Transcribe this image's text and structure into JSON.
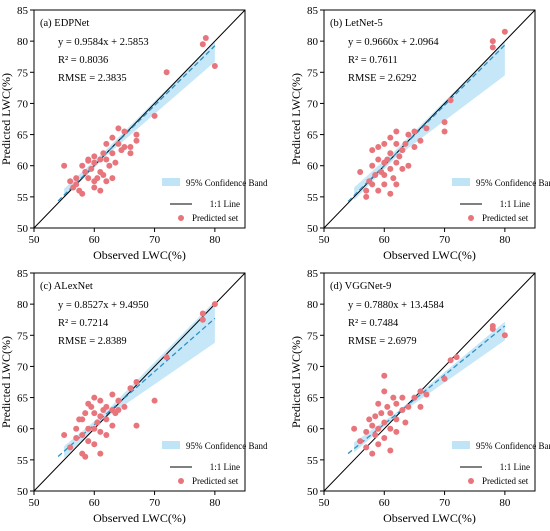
{
  "chart_data": [
    {
      "type": "scatter",
      "title": "(a) EDPNet",
      "xlabel": "Observed LWC(%)",
      "ylabel": "Predicted LWC(%)",
      "xlim": [
        50,
        85
      ],
      "ylim": [
        50,
        85
      ],
      "xticks": [
        50,
        60,
        70,
        80
      ],
      "yticks": [
        50,
        55,
        60,
        65,
        70,
        75,
        80,
        85
      ],
      "annotations": [
        "y = 0.9584x + 2.5853",
        "R² = 0.8036",
        "RMSE = 2.3835"
      ],
      "legend": [
        "95% Confidence Band",
        "1:1 Line",
        "Predicted set"
      ],
      "legend_position": "lower-right",
      "fit": {
        "slope": 0.9584,
        "intercept": 2.5853
      },
      "band": {
        "x": [
          55,
          62,
          80
        ],
        "upper": [
          56.3,
          62.6,
          80.0
        ],
        "lower": [
          54.8,
          61.6,
          76.7
        ]
      },
      "points": [
        [
          55,
          60.0
        ],
        [
          56,
          57.5
        ],
        [
          56.5,
          56.5
        ],
        [
          57,
          58.0
        ],
        [
          57,
          57.0
        ],
        [
          57.5,
          56.0
        ],
        [
          58,
          55.5
        ],
        [
          58,
          60.0
        ],
        [
          58.5,
          59.0
        ],
        [
          59,
          60.8
        ],
        [
          59,
          61.0
        ],
        [
          59,
          58.0
        ],
        [
          59.5,
          59.5
        ],
        [
          60,
          56.5
        ],
        [
          60,
          60.5
        ],
        [
          60,
          57.5
        ],
        [
          60,
          61.5
        ],
        [
          60.5,
          58.0
        ],
        [
          61,
          59.0
        ],
        [
          61,
          61.0
        ],
        [
          61,
          56.0
        ],
        [
          61.5,
          62.0
        ],
        [
          61.5,
          58.5
        ],
        [
          62,
          63.5
        ],
        [
          62,
          61.0
        ],
        [
          62,
          57.5
        ],
        [
          62.5,
          60.0
        ],
        [
          63,
          64.5
        ],
        [
          63,
          62.0
        ],
        [
          63,
          58.0
        ],
        [
          63.5,
          60.5
        ],
        [
          64,
          66.0
        ],
        [
          64,
          63.5
        ],
        [
          64.5,
          62.5
        ],
        [
          65,
          65.5
        ],
        [
          65,
          63.0
        ],
        [
          66,
          63.0
        ],
        [
          66,
          62.0
        ],
        [
          67,
          65.0
        ],
        [
          67,
          64.0
        ],
        [
          70,
          68.0
        ],
        [
          72,
          75.0
        ],
        [
          78,
          79.5
        ],
        [
          78.5,
          80.5
        ],
        [
          80,
          76.0
        ]
      ]
    },
    {
      "type": "scatter",
      "title": "(b) LetNet-5",
      "xlabel": "Observed LWC(%)",
      "ylabel": "Predicted LWC(%)",
      "xlim": [
        50,
        85
      ],
      "ylim": [
        50,
        85
      ],
      "xticks": [
        50,
        60,
        70,
        80
      ],
      "yticks": [
        50,
        55,
        60,
        65,
        70,
        75,
        80,
        85
      ],
      "annotations": [
        "y = 0.9660x + 2.0964",
        "R² = 0.7611",
        "RMSE = 2.6292"
      ],
      "legend": [
        "95% Confidence Band",
        "1:1 Line",
        "Predicted set"
      ],
      "legend_position": "lower-right",
      "fit": {
        "slope": 0.966,
        "intercept": 2.0964
      },
      "band": {
        "x": [
          55,
          62,
          80
        ],
        "upper": [
          56.5,
          62.6,
          80.0
        ],
        "lower": [
          54.5,
          61.4,
          74.5
        ]
      },
      "points": [
        [
          56,
          59.0
        ],
        [
          57,
          56.0
        ],
        [
          57,
          55.0
        ],
        [
          57.5,
          57.5
        ],
        [
          58,
          60.0
        ],
        [
          58,
          57.0
        ],
        [
          58,
          62.5
        ],
        [
          58.5,
          58.5
        ],
        [
          59,
          61.0
        ],
        [
          59,
          56.0
        ],
        [
          59,
          63.0
        ],
        [
          59.5,
          59.0
        ],
        [
          60,
          60.5
        ],
        [
          60,
          58.5
        ],
        [
          60,
          63.5
        ],
        [
          60,
          57.0
        ],
        [
          60.5,
          61.0
        ],
        [
          61,
          62.0
        ],
        [
          61,
          59.5
        ],
        [
          61,
          55.5
        ],
        [
          61,
          64.5
        ],
        [
          61.5,
          58.0
        ],
        [
          62,
          65.5
        ],
        [
          62,
          63.5
        ],
        [
          62,
          60.5
        ],
        [
          62,
          57.0
        ],
        [
          62.5,
          61.5
        ],
        [
          63,
          62.5
        ],
        [
          63,
          59.5
        ],
        [
          63.5,
          63.5
        ],
        [
          64,
          60.0
        ],
        [
          64,
          65.0
        ],
        [
          65,
          65.5
        ],
        [
          65,
          63.0
        ],
        [
          66,
          64.0
        ],
        [
          67,
          66.0
        ],
        [
          70,
          65.5
        ],
        [
          70,
          67.0
        ],
        [
          71,
          70.5
        ],
        [
          78,
          80.0
        ],
        [
          78,
          79.0
        ],
        [
          80,
          81.5
        ]
      ]
    },
    {
      "type": "scatter",
      "title": "(c) ALexNet",
      "xlabel": "Observed LWC(%)",
      "ylabel": "Predicted LWC(%)",
      "xlim": [
        50,
        85
      ],
      "ylim": [
        50,
        85
      ],
      "xticks": [
        50,
        60,
        70,
        80
      ],
      "yticks": [
        50,
        55,
        60,
        65,
        70,
        75,
        80,
        85
      ],
      "annotations": [
        "y = 0.8527x + 9.4950",
        "R² = 0.7214",
        "RMSE = 2.8389"
      ],
      "legend": [
        "95% Confidence Band",
        "1:1 Line",
        "Predicted set"
      ],
      "legend_position": "lower-right",
      "fit": {
        "slope": 0.8527,
        "intercept": 9.495
      },
      "band": {
        "x": [
          55,
          62,
          80
        ],
        "upper": [
          57.2,
          62.8,
          80.5
        ],
        "lower": [
          55.3,
          61.8,
          73.8
        ]
      },
      "points": [
        [
          55,
          59.0
        ],
        [
          56,
          57.0
        ],
        [
          57,
          60.0
        ],
        [
          57,
          58.5
        ],
        [
          57.5,
          61.5
        ],
        [
          58,
          56.0
        ],
        [
          58,
          61.5
        ],
        [
          58,
          59.0
        ],
        [
          58.5,
          55.5
        ],
        [
          58.5,
          62.5
        ],
        [
          59,
          60.0
        ],
        [
          59,
          64.0
        ],
        [
          59,
          58.0
        ],
        [
          59.5,
          63.5
        ],
        [
          60,
          62.5
        ],
        [
          60,
          60.0
        ],
        [
          60,
          57.5
        ],
        [
          60,
          65.0
        ],
        [
          60.5,
          61.0
        ],
        [
          61,
          64.5
        ],
        [
          61,
          62.0
        ],
        [
          61,
          59.5
        ],
        [
          61,
          56.0
        ],
        [
          61.5,
          63.0
        ],
        [
          62,
          63.5
        ],
        [
          62,
          61.5
        ],
        [
          62,
          59.0
        ],
        [
          63,
          65.5
        ],
        [
          63,
          63.0
        ],
        [
          63,
          60.5
        ],
        [
          63.5,
          62.5
        ],
        [
          64,
          64.5
        ],
        [
          64,
          63.0
        ],
        [
          65,
          63.5
        ],
        [
          66,
          66.5
        ],
        [
          67,
          67.5
        ],
        [
          67,
          60.5
        ],
        [
          70,
          64.5
        ],
        [
          72,
          71.5
        ],
        [
          78,
          78.5
        ],
        [
          78,
          77.5
        ],
        [
          80,
          80.0
        ]
      ]
    },
    {
      "type": "scatter",
      "title": "(d) VGGNet-9",
      "xlabel": "Observed LWC(%)",
      "ylabel": "Predicted LWC(%)",
      "xlim": [
        50,
        85
      ],
      "ylim": [
        50,
        85
      ],
      "xticks": [
        50,
        60,
        70,
        80
      ],
      "yticks": [
        50,
        55,
        60,
        65,
        70,
        75,
        80,
        85
      ],
      "annotations": [
        "y = 0.7880x + 13.4584",
        "R² = 0.7484",
        "RMSE = 2.6979"
      ],
      "legend": [
        "95% Confidence Band",
        "1:1 Line",
        "Predicted set"
      ],
      "legend_position": "lower-right",
      "fit": {
        "slope": 0.788,
        "intercept": 13.4584
      },
      "band": {
        "x": [
          55,
          62,
          80
        ],
        "upper": [
          57.8,
          62.6,
          77.2
        ],
        "lower": [
          56.2,
          62.0,
          74.2
        ]
      },
      "points": [
        [
          55,
          60.0
        ],
        [
          56,
          58.0
        ],
        [
          57,
          59.5
        ],
        [
          57,
          57.0
        ],
        [
          57.5,
          61.5
        ],
        [
          58,
          60.5
        ],
        [
          58,
          56.0
        ],
        [
          58.5,
          62.0
        ],
        [
          58.5,
          59.0
        ],
        [
          59,
          64.0
        ],
        [
          59,
          60.0
        ],
        [
          59,
          57.5
        ],
        [
          59.5,
          62.5
        ],
        [
          60,
          68.5
        ],
        [
          60,
          66.0
        ],
        [
          60,
          61.0
        ],
        [
          60,
          58.5
        ],
        [
          60.5,
          63.5
        ],
        [
          61,
          62.5
        ],
        [
          61,
          60.0
        ],
        [
          61,
          56.5
        ],
        [
          61.5,
          65.0
        ],
        [
          62,
          64.0
        ],
        [
          62,
          61.5
        ],
        [
          62,
          59.5
        ],
        [
          63,
          65.0
        ],
        [
          63,
          63.0
        ],
        [
          63.5,
          61.0
        ],
        [
          64,
          63.5
        ],
        [
          65,
          65.0
        ],
        [
          66,
          63.5
        ],
        [
          66,
          66.0
        ],
        [
          67,
          65.5
        ],
        [
          70,
          68.0
        ],
        [
          71,
          71.0
        ],
        [
          72,
          71.5
        ],
        [
          78,
          76.5
        ],
        [
          78,
          76.0
        ],
        [
          80,
          75.0
        ]
      ]
    }
  ],
  "colors": {
    "marker": "#e8747c",
    "fit_line": "#2f8fc4",
    "band": "#bfe4f6",
    "identity_line": "#000000"
  }
}
